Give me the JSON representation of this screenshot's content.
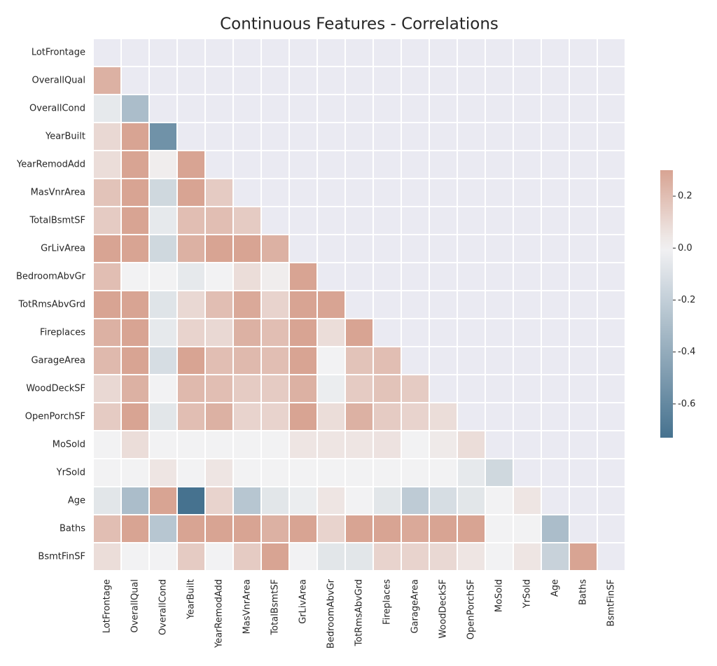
{
  "chart_data": {
    "type": "heatmap",
    "title": "Continuous Features - Correlations",
    "categories": [
      "LotFrontage",
      "OverallQual",
      "OverallCond",
      "YearBuilt",
      "YearRemodAdd",
      "MasVnrArea",
      "TotalBsmtSF",
      "GrLivArea",
      "BedroomAbvGr",
      "TotRmsAbvGrd",
      "Fireplaces",
      "GarageArea",
      "WoodDeckSF",
      "OpenPorchSF",
      "MoSold",
      "YrSold",
      "Age",
      "Baths",
      "BsmtFinSF"
    ],
    "values": [
      [
        null,
        null,
        null,
        null,
        null,
        null,
        null,
        null,
        null,
        null,
        null,
        null,
        null,
        null,
        null,
        null,
        null,
        null,
        null
      ],
      [
        0.25,
        null,
        null,
        null,
        null,
        null,
        null,
        null,
        null,
        null,
        null,
        null,
        null,
        null,
        null,
        null,
        null,
        null,
        null
      ],
      [
        -0.05,
        -0.3,
        null,
        null,
        null,
        null,
        null,
        null,
        null,
        null,
        null,
        null,
        null,
        null,
        null,
        null,
        null,
        null,
        null
      ],
      [
        0.1,
        0.3,
        -0.55,
        null,
        null,
        null,
        null,
        null,
        null,
        null,
        null,
        null,
        null,
        null,
        null,
        null,
        null,
        null,
        null
      ],
      [
        0.08,
        0.3,
        0.02,
        0.3,
        null,
        null,
        null,
        null,
        null,
        null,
        null,
        null,
        null,
        null,
        null,
        null,
        null,
        null,
        null
      ],
      [
        0.18,
        0.3,
        -0.15,
        0.3,
        0.15,
        null,
        null,
        null,
        null,
        null,
        null,
        null,
        null,
        null,
        null,
        null,
        null,
        null,
        null
      ],
      [
        0.15,
        0.3,
        -0.05,
        0.2,
        0.2,
        0.15,
        null,
        null,
        null,
        null,
        null,
        null,
        null,
        null,
        null,
        null,
        null,
        null,
        null
      ],
      [
        0.3,
        0.3,
        -0.15,
        0.25,
        0.3,
        0.3,
        0.25,
        null,
        null,
        null,
        null,
        null,
        null,
        null,
        null,
        null,
        null,
        null,
        null
      ],
      [
        0.2,
        0.0,
        0.0,
        -0.05,
        0.0,
        0.08,
        0.02,
        0.3,
        null,
        null,
        null,
        null,
        null,
        null,
        null,
        null,
        null,
        null,
        null
      ],
      [
        0.3,
        0.3,
        -0.08,
        0.1,
        0.2,
        0.28,
        0.12,
        0.3,
        0.3,
        null,
        null,
        null,
        null,
        null,
        null,
        null,
        null,
        null,
        null
      ],
      [
        0.25,
        0.3,
        -0.05,
        0.12,
        0.1,
        0.25,
        0.2,
        0.3,
        0.08,
        0.3,
        null,
        null,
        null,
        null,
        null,
        null,
        null,
        null,
        null
      ],
      [
        0.22,
        0.3,
        -0.12,
        0.3,
        0.2,
        0.22,
        0.2,
        0.3,
        0.0,
        0.18,
        0.2,
        null,
        null,
        null,
        null,
        null,
        null,
        null,
        null
      ],
      [
        0.1,
        0.25,
        0.0,
        0.22,
        0.2,
        0.15,
        0.15,
        0.25,
        -0.03,
        0.15,
        0.18,
        0.15,
        null,
        null,
        null,
        null,
        null,
        null,
        null
      ],
      [
        0.15,
        0.3,
        -0.07,
        0.2,
        0.25,
        0.12,
        0.12,
        0.3,
        0.08,
        0.25,
        0.15,
        0.12,
        0.08,
        null,
        null,
        null,
        null,
        null,
        null
      ],
      [
        0.0,
        0.08,
        0.0,
        0.0,
        0.0,
        0.0,
        0.0,
        0.05,
        0.05,
        0.05,
        0.06,
        0.0,
        0.03,
        0.08,
        null,
        null,
        null,
        null,
        null
      ],
      [
        0.0,
        0.0,
        0.05,
        0.0,
        0.05,
        0.0,
        0.0,
        0.0,
        0.0,
        0.0,
        0.0,
        0.0,
        0.0,
        -0.05,
        -0.15,
        null,
        null,
        null,
        null
      ],
      [
        -0.07,
        -0.3,
        0.3,
        -0.73,
        0.12,
        -0.25,
        -0.07,
        -0.03,
        0.05,
        0.0,
        -0.07,
        -0.22,
        -0.12,
        -0.07,
        0.0,
        0.05,
        null,
        null,
        null
      ],
      [
        0.2,
        0.3,
        -0.25,
        0.3,
        0.3,
        0.3,
        0.25,
        0.3,
        0.12,
        0.3,
        0.3,
        0.28,
        0.3,
        0.3,
        0.0,
        0.0,
        -0.3,
        null,
        null
      ],
      [
        0.08,
        0.0,
        0.0,
        0.15,
        0.0,
        0.15,
        0.3,
        0.0,
        -0.07,
        -0.07,
        0.12,
        0.12,
        0.1,
        0.05,
        0.0,
        0.05,
        -0.18,
        0.3,
        null
      ]
    ],
    "clim": [
      -0.73,
      0.3
    ],
    "cticks": [
      0.2,
      {
        "value": 0,
        "label": "0.0"
      },
      -0.2,
      -0.4,
      -0.6
    ],
    "colors": {
      "low": "#46728f",
      "mid": "#f2f2f3",
      "high": "#d8a493",
      "masked": "#eaeaf2"
    }
  }
}
